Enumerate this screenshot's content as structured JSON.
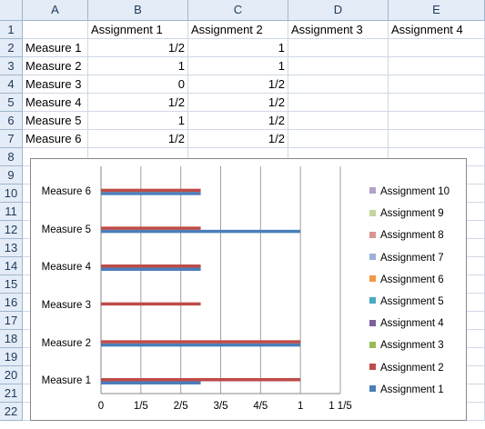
{
  "spreadsheet": {
    "columns": [
      "A",
      "B",
      "C",
      "D",
      "E"
    ],
    "rows": [
      "1",
      "2",
      "3",
      "4",
      "5",
      "6",
      "7",
      "8",
      "9",
      "10",
      "11",
      "12",
      "13",
      "14",
      "15",
      "16",
      "17",
      "18",
      "19",
      "20",
      "21",
      "22"
    ],
    "header_row": [
      "",
      "Assignment 1",
      "Assignment 2",
      "Assignment 3",
      "Assignment 4"
    ],
    "data_rows": [
      {
        "label": "Measure 1",
        "b": "1/2",
        "c": "1"
      },
      {
        "label": "Measure 2",
        "b": "1",
        "c": "1"
      },
      {
        "label": "Measure 3",
        "b": "0",
        "c": "1/2"
      },
      {
        "label": "Measure 4",
        "b": "1/2",
        "c": "1/2"
      },
      {
        "label": "Measure 5",
        "b": "1",
        "c": "1/2"
      },
      {
        "label": "Measure 6",
        "b": "1/2",
        "c": "1/2"
      }
    ]
  },
  "chart_data": {
    "type": "bar",
    "orientation": "horizontal",
    "categories": [
      "Measure 1",
      "Measure 2",
      "Measure 3",
      "Measure 4",
      "Measure 5",
      "Measure 6"
    ],
    "series": [
      {
        "name": "Assignment 1",
        "color": "#4a7ebb",
        "values": [
          0.5,
          1,
          0,
          0.5,
          1,
          0.5
        ]
      },
      {
        "name": "Assignment 2",
        "color": "#be4b48",
        "values": [
          1,
          1,
          0.5,
          0.5,
          0.5,
          0.5
        ]
      },
      {
        "name": "Assignment 3",
        "color": "#98b954",
        "values": [
          null,
          null,
          null,
          null,
          null,
          null
        ]
      },
      {
        "name": "Assignment 4",
        "color": "#7d60a0",
        "values": [
          null,
          null,
          null,
          null,
          null,
          null
        ]
      },
      {
        "name": "Assignment 5",
        "color": "#46aac4",
        "values": [
          null,
          null,
          null,
          null,
          null,
          null
        ]
      },
      {
        "name": "Assignment 6",
        "color": "#f79646",
        "values": [
          null,
          null,
          null,
          null,
          null,
          null
        ]
      },
      {
        "name": "Assignment 7",
        "color": "#9bb0d8",
        "values": [
          null,
          null,
          null,
          null,
          null,
          null
        ]
      },
      {
        "name": "Assignment 8",
        "color": "#d99694",
        "values": [
          null,
          null,
          null,
          null,
          null,
          null
        ]
      },
      {
        "name": "Assignment 9",
        "color": "#c3d69b",
        "values": [
          null,
          null,
          null,
          null,
          null,
          null
        ]
      },
      {
        "name": "Assignment 10",
        "color": "#b3a2c7",
        "values": [
          null,
          null,
          null,
          null,
          null,
          null
        ]
      }
    ],
    "x_ticks": [
      "0",
      "1/5",
      "2/5",
      "3/5",
      "4/5",
      "1",
      "1 1/5"
    ],
    "xlim": [
      0,
      1.2
    ],
    "grid": true,
    "legend_placement": "right"
  }
}
